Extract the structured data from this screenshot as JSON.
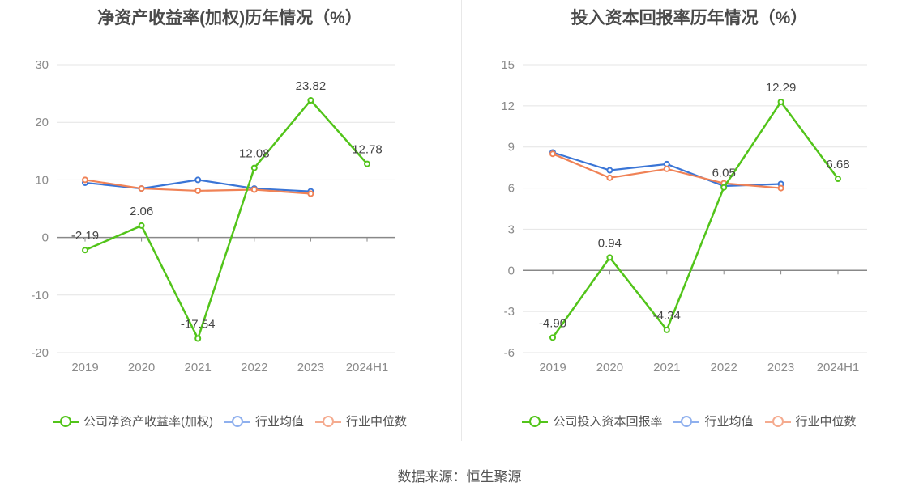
{
  "source_label": "数据来源：恒生聚源",
  "colors": {
    "company": "#52c41a",
    "avg": "#3a75d6",
    "median": "#f08256",
    "avg_legend": "#8fb0ee",
    "median_legend": "#f5ab8f"
  },
  "chart_data": [
    {
      "type": "line",
      "title": "净资产收益率(加权)历年情况（%）",
      "categories": [
        "2019",
        "2020",
        "2021",
        "2022",
        "2023",
        "2024H1"
      ],
      "ylim": [
        -20,
        30
      ],
      "yticks": [
        -20,
        -10,
        0,
        10,
        20,
        30
      ],
      "series": [
        {
          "name": "公司净资产收益率(加权)",
          "key": "company",
          "values": [
            -2.19,
            2.06,
            -17.54,
            12.08,
            23.82,
            12.78
          ],
          "labels": [
            "-2.19",
            "2.06",
            "-17.54",
            "12.08",
            "23.82",
            "12.78"
          ]
        },
        {
          "name": "行业均值",
          "key": "avg",
          "values": [
            9.5,
            8.5,
            10.0,
            8.5,
            8.0,
            null
          ]
        },
        {
          "name": "行业中位数",
          "key": "median",
          "values": [
            10.0,
            8.5,
            8.1,
            8.3,
            7.6,
            null
          ]
        }
      ]
    },
    {
      "type": "line",
      "title": "投入资本回报率历年情况（%）",
      "categories": [
        "2019",
        "2020",
        "2021",
        "2022",
        "2023",
        "2024H1"
      ],
      "ylim": [
        -6,
        15
      ],
      "yticks": [
        -6,
        -3,
        0,
        3,
        6,
        9,
        12,
        15
      ],
      "series": [
        {
          "name": "公司投入资本回报率",
          "key": "company",
          "values": [
            -4.9,
            0.94,
            -4.34,
            6.05,
            12.29,
            6.68
          ],
          "labels": [
            "-4.90",
            "0.94",
            "-4.34",
            "6.05",
            "12.29",
            "6.68"
          ]
        },
        {
          "name": "行业均值",
          "key": "avg",
          "values": [
            8.6,
            7.3,
            7.75,
            6.15,
            6.3,
            null
          ]
        },
        {
          "name": "行业中位数",
          "key": "median",
          "values": [
            8.5,
            6.75,
            7.4,
            6.35,
            6.0,
            null
          ]
        }
      ]
    }
  ]
}
